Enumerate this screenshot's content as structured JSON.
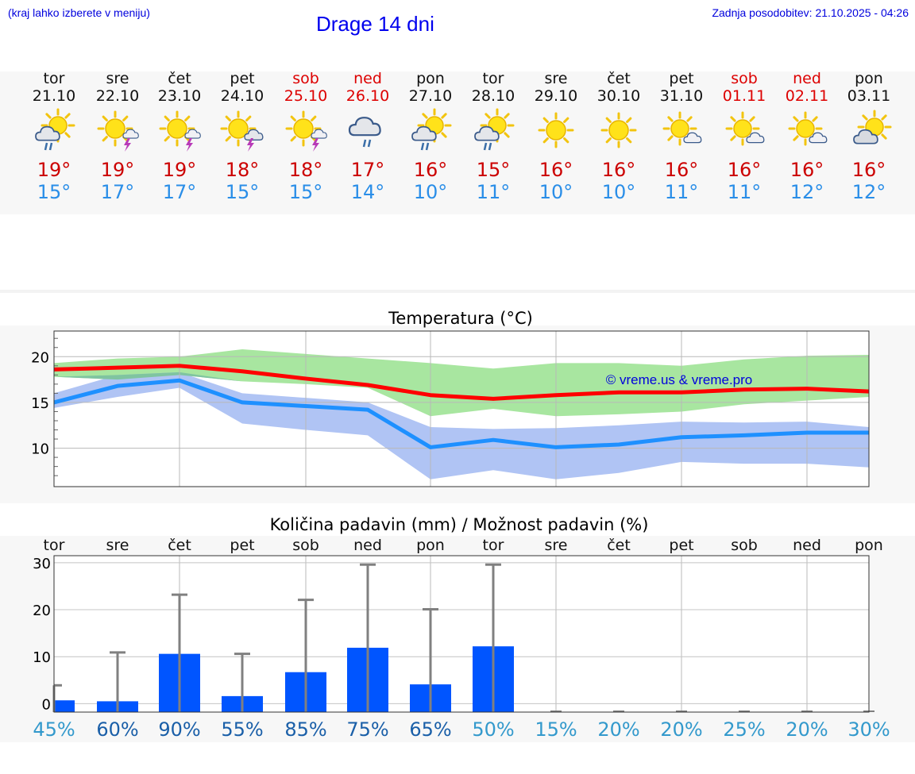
{
  "header": {
    "left_note": "(kraj lahko izberete v meniju)",
    "title": "Drage 14 dni",
    "updated": "Zadnja posodobitev: 21.10.2025 - 04:26"
  },
  "colors": {
    "tmax": "#cc0000",
    "tmin": "#2a8ee8",
    "weekend": "#dd0000",
    "max_line": "#ff0000",
    "min_line": "#1e90ff",
    "max_band": "#a8e6a0",
    "min_band": "#b0c4f4",
    "overlap_band": "#7fc4a0",
    "bar": "#0055ff",
    "error_bar": "#808080"
  },
  "days": [
    {
      "name": "tor",
      "date": "21.10",
      "weekend": false,
      "icon": "sun-cloud-rain-icon",
      "tmax": "19°",
      "tmin": "15°"
    },
    {
      "name": "sre",
      "date": "22.10",
      "weekend": false,
      "icon": "sun-thunder-icon",
      "tmax": "19°",
      "tmin": "17°"
    },
    {
      "name": "čet",
      "date": "23.10",
      "weekend": false,
      "icon": "sun-thunder-icon",
      "tmax": "19°",
      "tmin": "17°"
    },
    {
      "name": "pet",
      "date": "24.10",
      "weekend": false,
      "icon": "sun-cloud-thunder-icon",
      "tmax": "18°",
      "tmin": "15°"
    },
    {
      "name": "sob",
      "date": "25.10",
      "weekend": true,
      "icon": "sun-thunder-icon",
      "tmax": "18°",
      "tmin": "15°"
    },
    {
      "name": "ned",
      "date": "26.10",
      "weekend": true,
      "icon": "cloud-rain-icon",
      "tmax": "17°",
      "tmin": "14°"
    },
    {
      "name": "pon",
      "date": "27.10",
      "weekend": false,
      "icon": "sun-cloud-rain-icon",
      "tmax": "16°",
      "tmin": "10°"
    },
    {
      "name": "tor",
      "date": "28.10",
      "weekend": false,
      "icon": "sun-cloud-rain-icon",
      "tmax": "15°",
      "tmin": "11°"
    },
    {
      "name": "sre",
      "date": "29.10",
      "weekend": false,
      "icon": "sun-icon",
      "tmax": "16°",
      "tmin": "10°"
    },
    {
      "name": "čet",
      "date": "30.10",
      "weekend": false,
      "icon": "sun-icon",
      "tmax": "16°",
      "tmin": "10°"
    },
    {
      "name": "pet",
      "date": "31.10",
      "weekend": false,
      "icon": "sun-small-cloud-icon",
      "tmax": "16°",
      "tmin": "11°"
    },
    {
      "name": "sob",
      "date": "01.11",
      "weekend": true,
      "icon": "sun-small-cloud-icon",
      "tmax": "16°",
      "tmin": "11°"
    },
    {
      "name": "ned",
      "date": "02.11",
      "weekend": true,
      "icon": "sun-small-cloud-icon",
      "tmax": "16°",
      "tmin": "12°"
    },
    {
      "name": "pon",
      "date": "03.11",
      "weekend": false,
      "icon": "sun-cloud-icon",
      "tmax": "16°",
      "tmin": "12°"
    }
  ],
  "chart_data": [
    {
      "type": "line",
      "title": "Temperatura (°C)",
      "watermark": "© vreme.us & vreme.pro",
      "x": [
        1,
        2,
        3,
        4,
        5,
        6,
        7,
        8,
        9,
        10,
        11,
        12,
        13,
        14
      ],
      "ylim": [
        5.8,
        22.8
      ],
      "yticks": [
        10,
        15,
        20
      ],
      "ytick_labels": [
        "10",
        "15",
        "20"
      ],
      "grid": true,
      "series": [
        {
          "name": "max",
          "values": [
            18.6,
            18.8,
            19.0,
            18.4,
            17.6,
            16.9,
            15.8,
            15.4,
            15.8,
            16.1,
            16.1,
            16.4,
            16.5,
            16.2
          ]
        },
        {
          "name": "min",
          "values": [
            15.0,
            16.8,
            17.4,
            15.0,
            14.6,
            14.2,
            10.1,
            10.9,
            10.1,
            10.4,
            11.2,
            11.4,
            11.7,
            11.7
          ]
        }
      ],
      "bands": [
        {
          "name": "max_range",
          "upper": [
            19.3,
            19.8,
            20.0,
            20.8,
            20.3,
            19.8,
            19.3,
            18.7,
            19.3,
            19.3,
            19.0,
            19.7,
            20.1,
            20.2
          ],
          "lower": [
            17.8,
            17.5,
            18.0,
            17.3,
            17.0,
            16.6,
            13.5,
            14.3,
            13.5,
            13.7,
            14.0,
            14.8,
            15.2,
            15.6
          ]
        },
        {
          "name": "min_range",
          "upper": [
            16.0,
            18.0,
            18.3,
            16.0,
            15.5,
            15.0,
            12.3,
            12.1,
            12.2,
            12.5,
            12.9,
            12.8,
            12.9,
            12.3
          ],
          "lower": [
            14.4,
            15.6,
            16.6,
            12.7,
            12.0,
            11.4,
            6.6,
            7.6,
            6.6,
            7.3,
            8.5,
            8.3,
            8.3,
            7.9
          ]
        }
      ]
    },
    {
      "type": "bar",
      "title": "Količina padavin (mm) / Možnost padavin (%)",
      "categories": [
        "tor",
        "sre",
        "čet",
        "pet",
        "sob",
        "ned",
        "pon",
        "tor",
        "sre",
        "čet",
        "pet",
        "sob",
        "ned",
        "pon"
      ],
      "ylim": [
        -1.8,
        31.5
      ],
      "yticks": [
        0,
        10,
        20,
        30
      ],
      "ytick_labels": [
        "0",
        "10",
        "20",
        "30"
      ],
      "grid": true,
      "values": [
        0.7,
        0.5,
        10.6,
        1.6,
        6.7,
        11.9,
        4.1,
        12.2,
        0,
        0,
        0,
        0,
        0,
        0
      ],
      "error_max": [
        3.9,
        10.9,
        23.2,
        10.6,
        22.1,
        29.6,
        20.1,
        29.6,
        0,
        0,
        0,
        0,
        0,
        0
      ],
      "probability": [
        "45%",
        "60%",
        "90%",
        "55%",
        "85%",
        "75%",
        "65%",
        "50%",
        "15%",
        "20%",
        "20%",
        "25%",
        "20%",
        "30%"
      ],
      "probability_colors": [
        "#3399cc",
        "#1a5fa8",
        "#1a5fa8",
        "#1a5fa8",
        "#1a5fa8",
        "#1a5fa8",
        "#1a5fa8",
        "#3399cc",
        "#3399cc",
        "#3399cc",
        "#3399cc",
        "#3399cc",
        "#3399cc",
        "#3399cc"
      ]
    }
  ]
}
